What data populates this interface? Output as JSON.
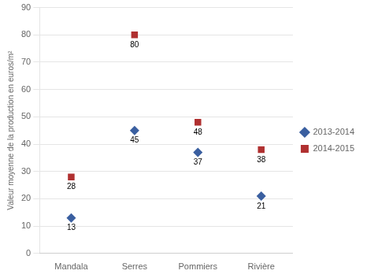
{
  "chart_data": {
    "type": "scatter",
    "categories": [
      "Mandala",
      "Serres",
      "Pommiers",
      "Rivière"
    ],
    "series": [
      {
        "name": "2013-2014",
        "color": "#3a5fa0",
        "marker": "diamond",
        "values": [
          13,
          45,
          37,
          21
        ]
      },
      {
        "name": "2014-2015",
        "color": "#b03030",
        "marker": "square",
        "values": [
          28,
          80,
          48,
          38
        ]
      }
    ],
    "ylabel": "Valeur moyenne de la production en euros/m²",
    "ylim": [
      0,
      90
    ],
    "yticks": [
      0,
      10,
      20,
      30,
      40,
      50,
      60,
      70,
      80,
      90
    ],
    "grid": "y",
    "legend": "right",
    "data_labels": true
  }
}
